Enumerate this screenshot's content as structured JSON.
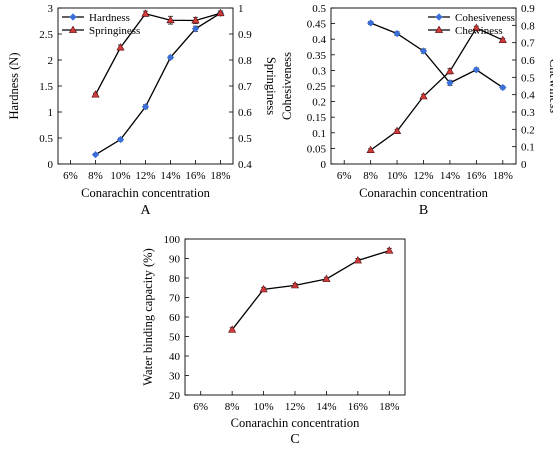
{
  "chart_data": [
    {
      "panel_label": "A",
      "type": "line",
      "categories": [
        "6%",
        "8%",
        "10%",
        "12%",
        "14%",
        "16%",
        "18%"
      ],
      "xlabel": "Conarachin concentration",
      "y_left": {
        "label": "Hardness (N)",
        "lim": [
          0,
          3
        ],
        "ticks": [
          "0",
          "0.5",
          "1",
          "1.5",
          "2",
          "2.5",
          "3"
        ]
      },
      "y_right": {
        "label": "Springiness",
        "lim": [
          0.4,
          1.0
        ],
        "ticks": [
          "0.4",
          "0.5",
          "0.6",
          "0.7",
          "0.8",
          "0.9",
          "1"
        ]
      },
      "series": [
        {
          "name": "Hardness",
          "axis": "left",
          "marker": "diamond",
          "color": "#3a6fd8",
          "values": [
            null,
            0.18,
            0.47,
            1.1,
            2.05,
            2.6,
            2.9
          ],
          "errors": [
            null,
            0.02,
            0.03,
            0.04,
            0.03,
            0.05,
            0.04
          ]
        },
        {
          "name": "Springiness",
          "axis": "right",
          "marker": "triangle",
          "color": "#d03a3a",
          "values": [
            null,
            0.667,
            0.848,
            0.978,
            0.953,
            0.952,
            0.98
          ],
          "errors": [
            null,
            0.005,
            0.01,
            0.01,
            0.015,
            0.012,
            0.008
          ]
        }
      ],
      "legend": "top-left"
    },
    {
      "panel_label": "B",
      "type": "line",
      "categories": [
        "6%",
        "8%",
        "10%",
        "12%",
        "14%",
        "16%",
        "18%"
      ],
      "xlabel": "Conarachin concentration",
      "y_left": {
        "label": "Cohesiveness",
        "lim": [
          0,
          0.5
        ],
        "ticks": [
          "0",
          "0.05",
          "0.1",
          "0.15",
          "0.2",
          "0.25",
          "0.3",
          "0.35",
          "0.4",
          "0.45",
          "0.5"
        ]
      },
      "y_right": {
        "label": "Chewiness",
        "lim": [
          0,
          0.9
        ],
        "ticks": [
          "0",
          "0.1",
          "0.2",
          "0.3",
          "0.4",
          "0.5",
          "0.6",
          "0.7",
          "0.8",
          "0.9"
        ]
      },
      "series": [
        {
          "name": "Cohesiveness",
          "axis": "left",
          "marker": "diamond",
          "color": "#3a6fd8",
          "values": [
            null,
            0.452,
            0.418,
            0.362,
            0.26,
            0.302,
            0.245
          ],
          "errors": [
            null,
            0.005,
            0.006,
            0.007,
            0.008,
            0.006,
            0.005
          ]
        },
        {
          "name": "Chewiness",
          "axis": "right",
          "marker": "triangle",
          "color": "#d03a3a",
          "values": [
            null,
            0.08,
            0.19,
            0.39,
            0.535,
            0.785,
            0.715
          ],
          "errors": [
            null,
            0.008,
            0.01,
            0.012,
            0.015,
            0.01,
            0.01
          ]
        }
      ],
      "legend": "top-right"
    },
    {
      "panel_label": "C",
      "type": "line",
      "categories": [
        "6%",
        "8%",
        "10%",
        "12%",
        "14%",
        "16%",
        "18%"
      ],
      "xlabel": "Conarachin concentration",
      "y_left": {
        "label": "Water binding capacity (%)",
        "lim": [
          20,
          100
        ],
        "ticks": [
          "20",
          "30",
          "40",
          "50",
          "60",
          "70",
          "80",
          "90",
          "100"
        ]
      },
      "series": [
        {
          "name": "",
          "axis": "left",
          "marker": "triangle",
          "color": "#d03a3a",
          "values": [
            null,
            53.5,
            74.2,
            76.2,
            79.5,
            89.0,
            94.0
          ],
          "errors": [
            null,
            1.0,
            1.0,
            1.0,
            0.8,
            1.0,
            1.2
          ]
        }
      ]
    }
  ]
}
